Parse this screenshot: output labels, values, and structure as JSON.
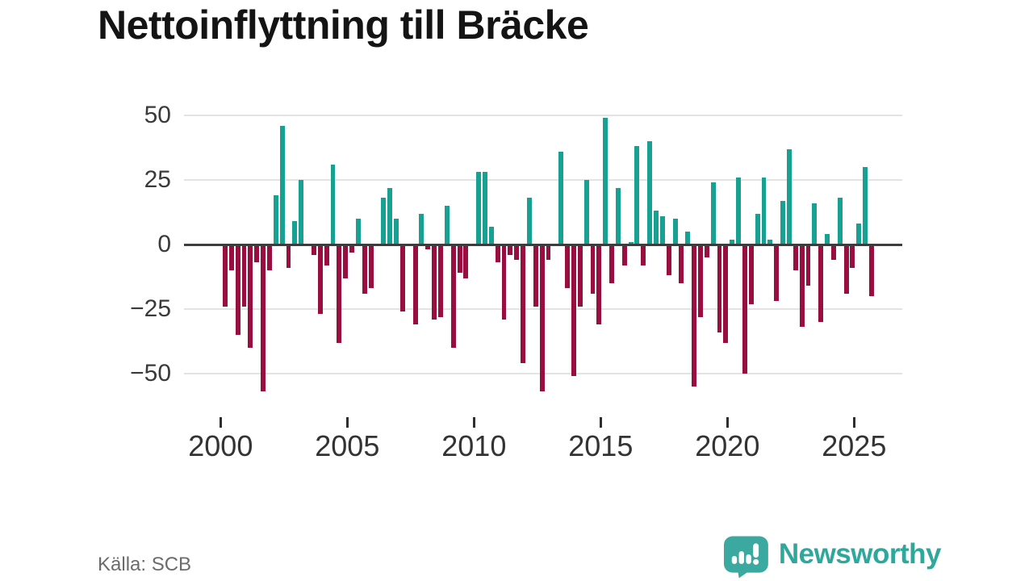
{
  "title": "Nettoinflyttning till Bräcke",
  "source": "Källa: SCB",
  "branding": {
    "name": "Newsworthy"
  },
  "colors": {
    "positive_bar": "#16A192",
    "negative_bar": "#9A0E3F",
    "brand_teal": "#2FA79B",
    "gridline": "#e3e3e3",
    "zero_line": "#3d3d3d",
    "axis_text": "#333333"
  },
  "chart_data": {
    "type": "bar",
    "title": "Nettoinflyttning till Bräcke",
    "xlabel": "",
    "ylabel": "",
    "frequency": "quarterly",
    "x_start": "2000 Q1",
    "x_end": "2025 Q3",
    "grid": true,
    "legend": false,
    "ylim": [
      -60,
      52
    ],
    "y_ticks": [
      50,
      25,
      0,
      -25,
      -50
    ],
    "y_tick_labels": [
      "50",
      "25",
      "0",
      "−25",
      "−50"
    ],
    "x_tick_labels": [
      "2000",
      "2005",
      "2010",
      "2015",
      "2020",
      "2025"
    ],
    "values": [
      -24,
      -10,
      -35,
      -24,
      -40,
      -7,
      -57,
      -10,
      19,
      46,
      -9,
      9,
      25,
      0,
      -4,
      -27,
      -8,
      31,
      -38,
      -13,
      -3,
      10,
      -19,
      -17,
      0,
      18,
      22,
      10,
      -26,
      0,
      -31,
      12,
      -2,
      -29,
      -28,
      15,
      -40,
      -11,
      -13,
      0,
      28,
      28,
      7,
      -7,
      -29,
      -4,
      -6,
      -46,
      18,
      -24,
      -57,
      -6,
      0,
      36,
      -17,
      -51,
      -24,
      25,
      -19,
      -31,
      49,
      -15,
      22,
      -8,
      1,
      38,
      -8,
      40,
      13,
      11,
      -12,
      10,
      -15,
      5,
      -55,
      -28,
      -5,
      24,
      -34,
      -38,
      2,
      26,
      -50,
      -23,
      12,
      26,
      2,
      -22,
      17,
      37,
      -10,
      -32,
      -16,
      16,
      -30,
      4,
      -6,
      18,
      -19,
      -9,
      8,
      30,
      -20
    ]
  }
}
